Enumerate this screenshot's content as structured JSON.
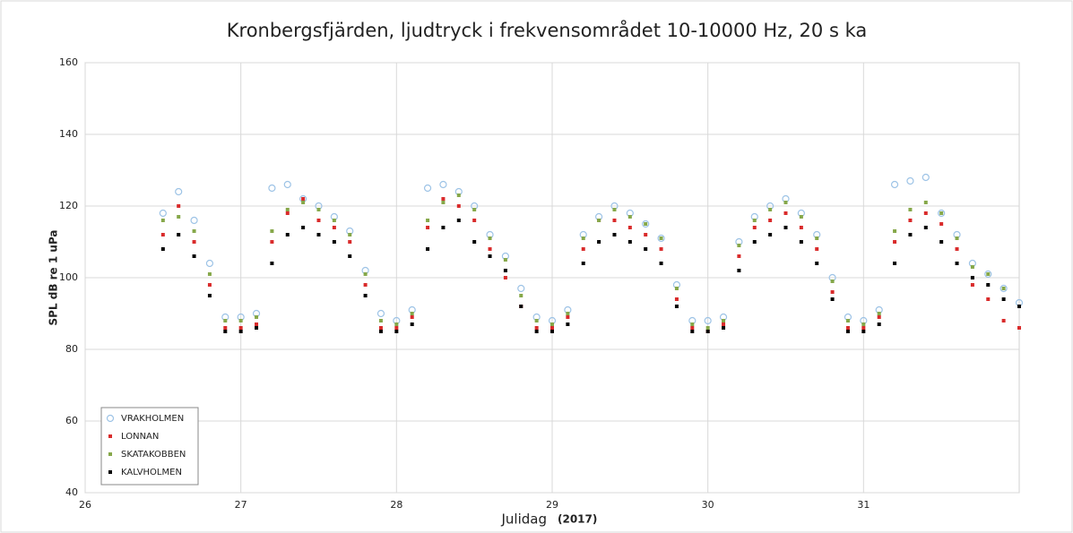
{
  "chart_data": {
    "type": "scatter",
    "title": "Kronbergsfjärden, ljudtryck i frekvensområdet 10-10000 Hz, 20 s ka",
    "x_label": "Julidag",
    "x_label_note": "(2017)",
    "y_label": "SPL dB re 1 uPa",
    "xlim": [
      26,
      32
    ],
    "xticks": [
      26,
      27,
      28,
      29,
      30,
      31
    ],
    "ylim": [
      40,
      160
    ],
    "yticks": [
      40,
      60,
      80,
      100,
      120,
      140,
      160
    ],
    "grid": true,
    "legend": "lower left",
    "x": [
      26.5,
      26.6,
      26.7,
      26.8,
      26.9,
      27.0,
      27.1,
      27.2,
      27.3,
      27.4,
      27.5,
      27.6,
      27.7,
      27.8,
      27.9,
      28.0,
      28.1,
      28.2,
      28.3,
      28.4,
      28.5,
      28.6,
      28.7,
      28.8,
      28.9,
      29.0,
      29.1,
      29.2,
      29.3,
      29.4,
      29.5,
      29.6,
      29.7,
      29.8,
      29.9,
      30.0,
      30.1,
      30.2,
      30.3,
      30.4,
      30.5,
      30.6,
      30.7,
      30.8,
      30.9,
      31.0,
      31.1,
      31.2,
      31.3,
      31.4,
      31.5,
      31.6,
      31.7,
      31.8,
      31.9,
      32.0
    ],
    "series": [
      {
        "name": "VRAKHOLMEN",
        "color": "#9dc3e6",
        "values": [
          118,
          124,
          116,
          104,
          89,
          89,
          90,
          125,
          126,
          122,
          120,
          117,
          113,
          102,
          90,
          88,
          91,
          125,
          126,
          124,
          120,
          112,
          106,
          97,
          89,
          88,
          91,
          112,
          117,
          120,
          118,
          115,
          111,
          98,
          88,
          88,
          89,
          110,
          117,
          120,
          122,
          118,
          112,
          100,
          89,
          88,
          91,
          126,
          127,
          128,
          118,
          112,
          104,
          101,
          97,
          93
        ]
      },
      {
        "name": "LONNAN",
        "color": "#d92b2b",
        "values": [
          112,
          120,
          110,
          98,
          86,
          86,
          87,
          110,
          118,
          122,
          116,
          114,
          110,
          98,
          86,
          86,
          89,
          114,
          122,
          120,
          116,
          108,
          100,
          92,
          86,
          86,
          89,
          108,
          116,
          116,
          114,
          112,
          108,
          94,
          86,
          85,
          87,
          106,
          114,
          116,
          118,
          114,
          108,
          96,
          86,
          86,
          89,
          110,
          116,
          118,
          115,
          108,
          98,
          94,
          88,
          86
        ]
      },
      {
        "name": "SKATAKOBBEN",
        "color": "#86a84a",
        "values": [
          116,
          117,
          113,
          101,
          88,
          88,
          89,
          113,
          119,
          121,
          119,
          116,
          112,
          101,
          88,
          87,
          90,
          116,
          121,
          123,
          119,
          111,
          105,
          95,
          88,
          87,
          90,
          111,
          116,
          119,
          117,
          115,
          111,
          97,
          87,
          86,
          88,
          109,
          116,
          119,
          121,
          117,
          111,
          99,
          88,
          87,
          90,
          113,
          119,
          121,
          118,
          111,
          103,
          101,
          97,
          92
        ]
      },
      {
        "name": "KALVHOLMEN",
        "color": "#000000",
        "values": [
          108,
          112,
          106,
          95,
          85,
          85,
          86,
          104,
          112,
          114,
          112,
          110,
          106,
          95,
          85,
          85,
          87,
          108,
          114,
          116,
          110,
          106,
          102,
          92,
          85,
          85,
          87,
          104,
          110,
          112,
          110,
          108,
          104,
          92,
          85,
          85,
          86,
          102,
          110,
          112,
          114,
          110,
          104,
          94,
          85,
          85,
          87,
          104,
          112,
          114,
          110,
          104,
          100,
          98,
          94,
          92
        ]
      }
    ]
  }
}
